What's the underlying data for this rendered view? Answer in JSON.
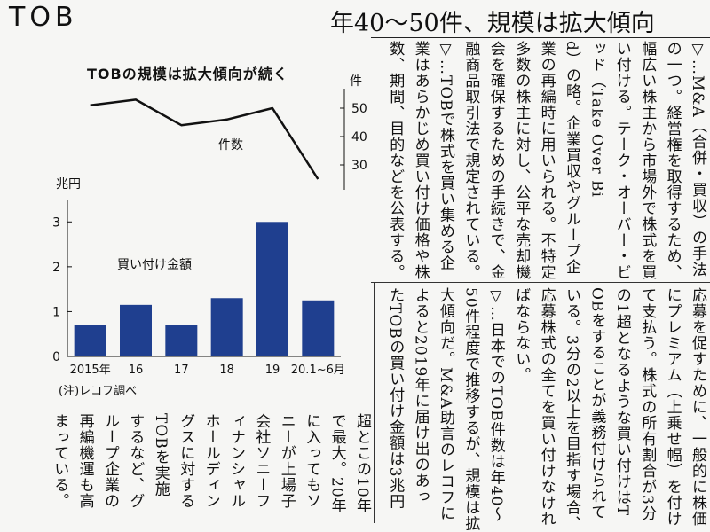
{
  "header": {
    "tag": "TOB",
    "headline": "年40〜50件、規模は拡大傾向"
  },
  "chart_data": {
    "type": "bar",
    "title": "TOBの規模は拡大傾向が続く",
    "bar_series": {
      "name": "買い付け金額",
      "unit": "兆円",
      "categories": [
        "2015年",
        "16",
        "17",
        "18",
        "19",
        "20.1~6月"
      ],
      "values": [
        0.7,
        1.15,
        0.7,
        1.3,
        3.0,
        1.25
      ],
      "ylim": [
        0,
        3.5
      ],
      "ticks": [
        0,
        1,
        2,
        3
      ]
    },
    "line_series": {
      "name": "件数",
      "unit": "件",
      "values": [
        51,
        53,
        44,
        46,
        50,
        25
      ],
      "ylim": [
        20,
        60
      ],
      "ticks": [
        30,
        40,
        50
      ]
    },
    "note": "(注)レコフ調べ",
    "bar_color": "#1f3f8f"
  },
  "article": {
    "top_columns": [
      "▽…M&A（合併・買収）の手法",
      "の一つ。経営権を取得するため、",
      "幅広い株主から市場外で株式を買",
      "い付ける。テーク・オーバー・ビ",
      "ッド（Take Over Bi",
      "d）の略。企業買収やグループ企",
      "業の再編時に用いられる。不特定",
      "多数の株主に対し、公平な売却機",
      "会を確保するための手続きで、金",
      "融商品取引法で規定されている。",
      "▽…TOBで株式を買い集める企",
      "業はあらかじめ買い付け価格や株",
      "数、期間、目的などを公表する。"
    ],
    "mid_columns": [
      "応募を促すために、一般的に株価",
      "にプレミアム（上乗せ幅）を付け",
      "て支払う。株式の所有割合が3分",
      "の1超となるような買い付けはT",
      "OBをすることが義務付けられて",
      "いる。3分の2以上を目指す場合、",
      "応募株式の全てを買い付けなけれ",
      "ばならない。",
      "▽…日本でのTOB件数は年40〜",
      "50件程度で推移するが、規模は拡",
      "大傾向だ。M&A助言のレコフに",
      "よると2019年に届け出のあっ",
      "たTOBの買い付け金額は3兆円"
    ],
    "bottom_columns": [
      "超とこの10年",
      "で最大。20年",
      "に入ってもソ",
      "ニーが上場子",
      "会社ソニーフ",
      "ィナンシャル",
      "ホールディン",
      "グスに対する",
      "TOBを実施",
      "するなど、グ",
      "ループ企業の",
      "再編機運も高",
      "まっている。"
    ]
  }
}
